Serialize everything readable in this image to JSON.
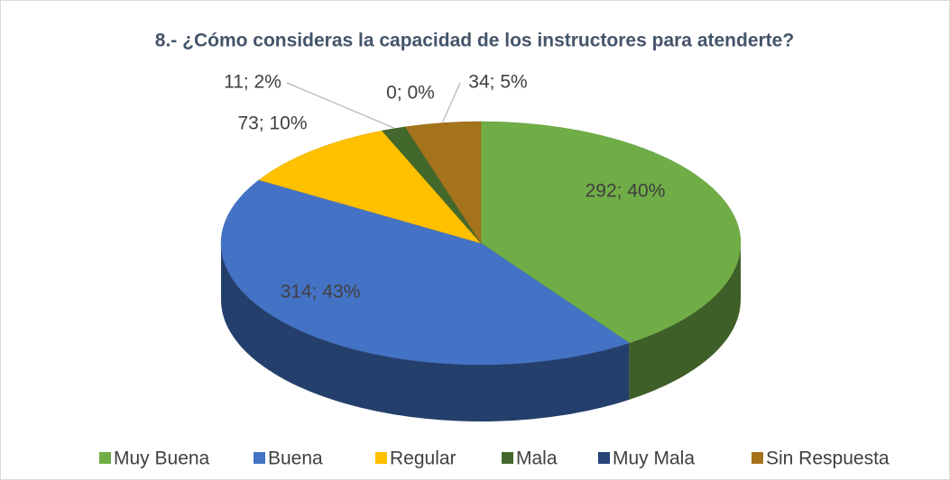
{
  "chart_data": {
    "type": "pie3d",
    "title": "8.- ¿Cómo consideras la capacidad de los instructores para atenderte?",
    "categories": [
      "Muy Buena",
      "Buena",
      "Regular",
      "Mala",
      "Muy Mala",
      "Sin Respuesta"
    ],
    "values": [
      292,
      314,
      73,
      11,
      0,
      34
    ],
    "value_labels": [
      "292; 40%",
      "314; 43%",
      "73; 10%",
      "11; 2%",
      "0; 0%",
      "34; 5%"
    ],
    "colors": [
      "#70ad47",
      "#4472c4",
      "#ffc000",
      "#43682b",
      "#264478",
      "#a5731c"
    ],
    "legend": "bottom"
  }
}
